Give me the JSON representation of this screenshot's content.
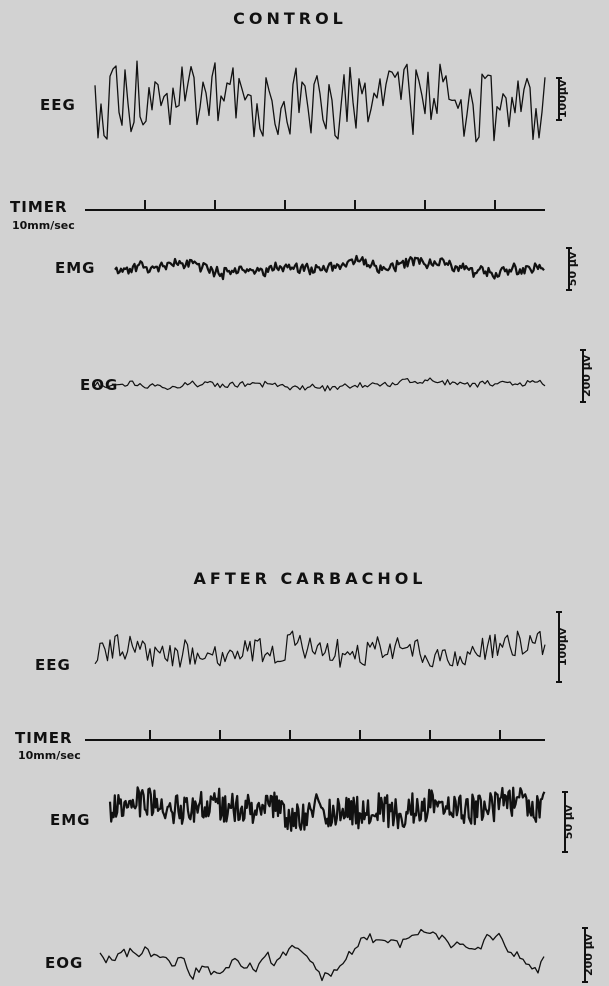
{
  "panels": [
    {
      "title": "CONTROL",
      "traces": [
        {
          "label": "EEG",
          "scale": "100μv"
        },
        {
          "label": "TIMER",
          "speed": "10mm/sec"
        },
        {
          "label": "EMG",
          "scale": "50 μv"
        },
        {
          "label": "EOG",
          "scale": "200 μv"
        }
      ]
    },
    {
      "title": "AFTER CARBACHOL",
      "traces": [
        {
          "label": "EEG",
          "scale": "100μv"
        },
        {
          "label": "TIMER",
          "speed": "10mm/sec"
        },
        {
          "label": "EMG",
          "scale": "50 μv"
        },
        {
          "label": "EOG",
          "scale": "200 μv"
        }
      ]
    }
  ]
}
